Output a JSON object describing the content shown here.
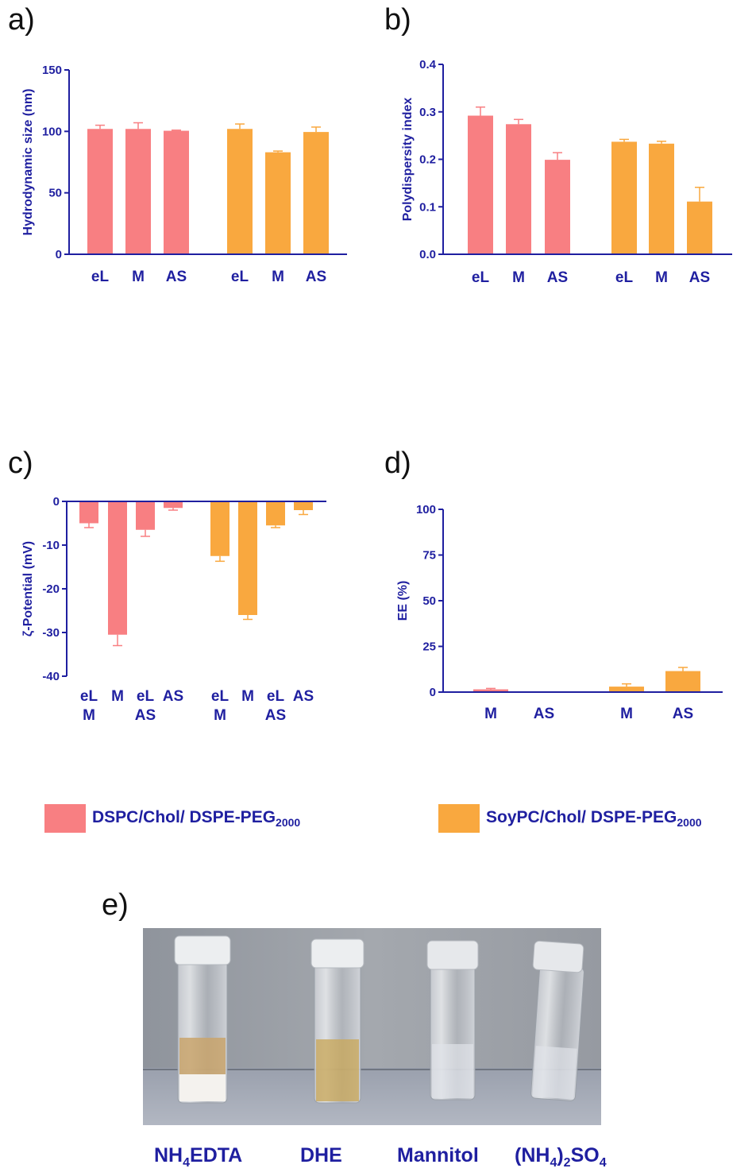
{
  "panels": {
    "a": {
      "letter": "a)"
    },
    "b": {
      "letter": "b)"
    },
    "c": {
      "letter": "c)"
    },
    "d": {
      "letter": "d)"
    },
    "e": {
      "letter": "e)"
    }
  },
  "colors": {
    "dspc": "#f87f82",
    "soypc": "#f9a83f",
    "axis": "#1f1fa0"
  },
  "legend": {
    "dspc": {
      "text": "DSPC/Chol/ DSPE-PEG",
      "sub": "2000"
    },
    "soypc": {
      "text": "SoyPC/Chol/ DSPE-PEG",
      "sub": "2000"
    }
  },
  "chart_data": [
    {
      "id": "a",
      "type": "bar",
      "ylabel": "Hydrodynamic size (nm)",
      "ylim": [
        0,
        150
      ],
      "yticks": [
        0,
        50,
        100,
        150
      ],
      "categories": [
        "eL",
        "M",
        "AS",
        "eL",
        "M",
        "AS"
      ],
      "values": [
        102,
        102,
        100.5,
        102,
        83,
        99.5
      ],
      "errors": [
        3,
        5,
        0.5,
        4,
        1,
        4
      ],
      "series_index": [
        0,
        0,
        0,
        1,
        1,
        1
      ]
    },
    {
      "id": "b",
      "type": "bar",
      "ylabel": "Polydispersity index",
      "ylim": [
        0,
        0.4
      ],
      "yticks": [
        0.0,
        0.1,
        0.2,
        0.3,
        0.4
      ],
      "ytick_labels": [
        "0.0",
        "0.1",
        "0.2",
        "0.3",
        "0.4"
      ],
      "categories": [
        "eL",
        "M",
        "AS",
        "eL",
        "M",
        "AS"
      ],
      "values": [
        0.292,
        0.274,
        0.199,
        0.237,
        0.233,
        0.111
      ],
      "errors": [
        0.018,
        0.01,
        0.015,
        0.005,
        0.005,
        0.03
      ],
      "series_index": [
        0,
        0,
        0,
        1,
        1,
        1
      ]
    },
    {
      "id": "c",
      "type": "bar",
      "ylabel": "ζ-Potential (mV)",
      "ylim": [
        -40,
        0
      ],
      "yticks": [
        0,
        -10,
        -20,
        -30,
        -40
      ],
      "categories": [
        [
          "eL",
          "M"
        ],
        [
          "M"
        ],
        [
          "eL",
          "AS"
        ],
        [
          "AS"
        ],
        [
          "eL",
          "M"
        ],
        [
          "M"
        ],
        [
          "eL",
          "AS"
        ],
        [
          "AS"
        ]
      ],
      "values": [
        -5,
        -30.5,
        -6.5,
        -1.5,
        -12.5,
        -26,
        -5.5,
        -2
      ],
      "errors": [
        1,
        2.5,
        1.5,
        0.5,
        1.2,
        1,
        0.5,
        1
      ],
      "series_index": [
        0,
        0,
        0,
        0,
        1,
        1,
        1,
        1
      ]
    },
    {
      "id": "d",
      "type": "bar",
      "ylabel": "EE (%)",
      "ylim": [
        0,
        100
      ],
      "yticks": [
        0,
        25,
        50,
        75,
        100
      ],
      "categories": [
        "M",
        "AS",
        "M",
        "AS"
      ],
      "values": [
        1.5,
        0,
        3,
        11.5
      ],
      "errors": [
        0.5,
        0,
        1.5,
        2
      ],
      "series_index": [
        0,
        0,
        1,
        1
      ]
    }
  ],
  "photo": {
    "labels": [
      {
        "main": "NH",
        "sub": "4",
        "rest": "EDTA"
      },
      {
        "main": "DHE"
      },
      {
        "main": "Mannitol"
      },
      {
        "main": "(NH",
        "sub": "4",
        "mid": ")",
        "sub2": "2",
        "rest": "SO",
        "sub3": "4"
      }
    ]
  }
}
